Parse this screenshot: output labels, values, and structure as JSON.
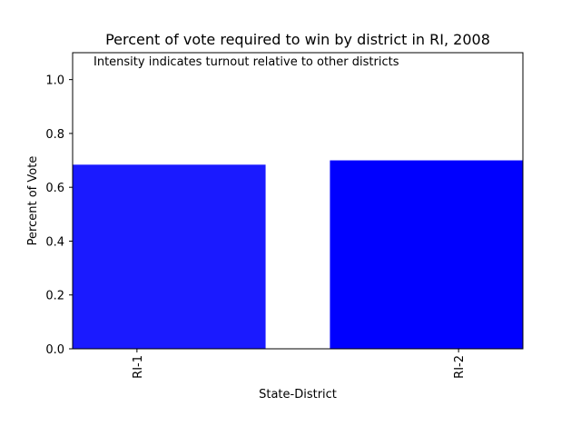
{
  "chart_data": {
    "type": "bar",
    "title": "Percent of vote required to win by district in RI, 2008",
    "annotation": "Intensity indicates turnout relative to other districts",
    "xlabel": "State-District",
    "ylabel": "Percent of Vote",
    "categories": [
      "RI-1",
      "RI-2"
    ],
    "values": [
      0.684,
      0.7
    ],
    "bar_colors": [
      "#1a1aff",
      "#0000ff"
    ],
    "ylim": [
      0,
      1.1
    ],
    "yticks": [
      0.0,
      0.2,
      0.4,
      0.6,
      0.8,
      1.0
    ],
    "ytick_labels": [
      "0.0",
      "0.2",
      "0.4",
      "0.6",
      "0.8",
      "1.0"
    ],
    "grid": false,
    "legend": "none"
  }
}
